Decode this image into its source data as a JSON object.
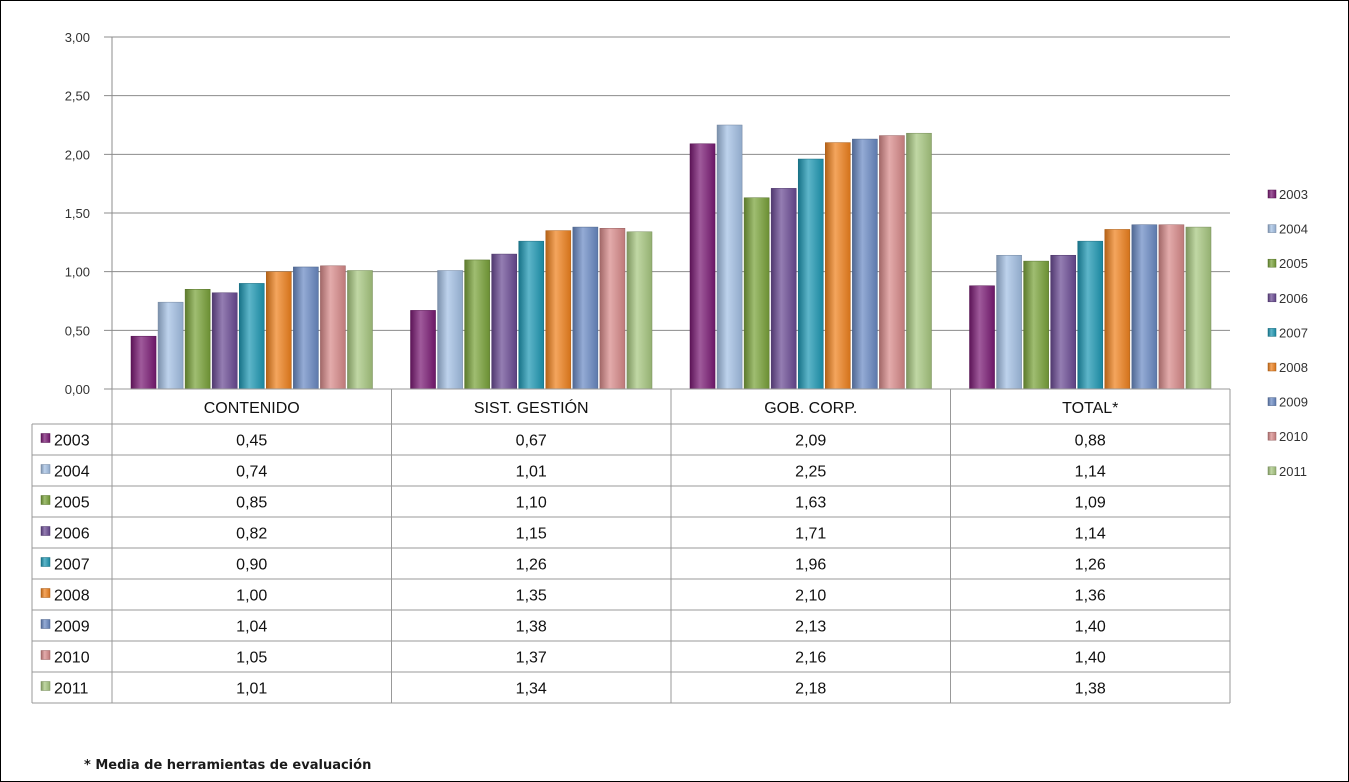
{
  "chart_data": {
    "type": "bar",
    "categories": [
      "CONTENIDO",
      "SIST. GESTIÓN",
      "GOB. CORP.",
      "TOTAL*"
    ],
    "ylim": [
      0,
      3
    ],
    "yticks": [
      "0,00",
      "0,50",
      "1,00",
      "1,50",
      "2,00",
      "2,50",
      "3,00"
    ],
    "grid": true,
    "legend_placement": "right",
    "data_table": true,
    "series": [
      {
        "name": "2003",
        "color": "#7a1a74",
        "values": [
          0.45,
          0.67,
          2.09,
          0.88
        ],
        "labels": [
          "0,45",
          "0,67",
          "2,09",
          "0,88"
        ]
      },
      {
        "name": "2004",
        "color": "#a4c0e4",
        "values": [
          0.74,
          1.01,
          2.25,
          1.14
        ],
        "labels": [
          "0,74",
          "1,01",
          "2,25",
          "1,14"
        ]
      },
      {
        "name": "2005",
        "color": "#7aa33a",
        "values": [
          0.85,
          1.1,
          1.63,
          1.09
        ],
        "labels": [
          "0,85",
          "1,10",
          "1,63",
          "1,09"
        ]
      },
      {
        "name": "2006",
        "color": "#6a4a94",
        "values": [
          0.82,
          1.15,
          1.71,
          1.14
        ],
        "labels": [
          "0,82",
          "1,15",
          "1,71",
          "1,14"
        ]
      },
      {
        "name": "2007",
        "color": "#1e98b4",
        "values": [
          0.9,
          1.26,
          1.96,
          1.26
        ],
        "labels": [
          "0,90",
          "1,26",
          "1,96",
          "1,26"
        ]
      },
      {
        "name": "2008",
        "color": "#f0821e",
        "values": [
          1.0,
          1.35,
          2.1,
          1.36
        ],
        "labels": [
          "1,00",
          "1,35",
          "2,10",
          "1,36"
        ]
      },
      {
        "name": "2009",
        "color": "#6a8ac4",
        "values": [
          1.04,
          1.38,
          2.13,
          1.4
        ],
        "labels": [
          "1,04",
          "1,38",
          "2,13",
          "1,40"
        ]
      },
      {
        "name": "2010",
        "color": "#d88a8a",
        "values": [
          1.05,
          1.37,
          2.16,
          1.4
        ],
        "labels": [
          "1,05",
          "1,37",
          "2,16",
          "1,40"
        ]
      },
      {
        "name": "2011",
        "color": "#a8c880",
        "values": [
          1.01,
          1.34,
          2.18,
          1.38
        ],
        "labels": [
          "1,01",
          "1,34",
          "2,18",
          "1,38"
        ]
      }
    ]
  },
  "footnote": "* Media de herramientas de evaluación"
}
